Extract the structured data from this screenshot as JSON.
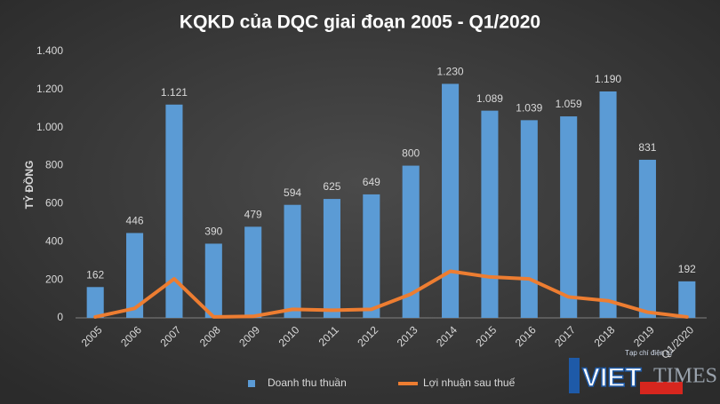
{
  "chart_data": {
    "type": "bar",
    "title": "KQKD của DQC giai đoạn 2005 - Q1/2020",
    "y_label": "TỶ ĐỒNG",
    "categories": [
      "2005",
      "2006",
      "2007",
      "2008",
      "2009",
      "2010",
      "2011",
      "2012",
      "2013",
      "2014",
      "2015",
      "2016",
      "2017",
      "2018",
      "2019",
      "Q1/2020"
    ],
    "series": [
      {
        "name": "Doanh thu thuần",
        "type": "bar",
        "color": "#5b9bd5",
        "values": [
          162,
          446,
          1121,
          390,
          479,
          594,
          625,
          649,
          800,
          1230,
          1089,
          1039,
          1059,
          1190,
          831,
          192
        ],
        "value_labels": [
          "162",
          "446",
          "1.121",
          "390",
          "479",
          "594",
          "625",
          "649",
          "800",
          "1.230",
          "1.089",
          "1.039",
          "1.059",
          "1.190",
          "831",
          "192"
        ]
      },
      {
        "name": "Lợi nhuận sau thuế",
        "type": "line",
        "color": "#ed7d31",
        "values": [
          5,
          50,
          205,
          5,
          8,
          45,
          40,
          45,
          125,
          245,
          215,
          205,
          110,
          90,
          30,
          5
        ]
      }
    ],
    "ylim": [
      0,
      1400
    ],
    "yticks": [
      0,
      200,
      400,
      600,
      800,
      {
        "value": 1000,
        "label": "1.000"
      },
      {
        "value": 1200,
        "label": "1.200"
      },
      {
        "value": 1400,
        "label": "1.400"
      }
    ],
    "grid": false,
    "legend": "bottom",
    "watermark": {
      "tagline": "Tạp chí điện tử",
      "brand_a": "VIET",
      "brand_b": "TIMES"
    }
  }
}
